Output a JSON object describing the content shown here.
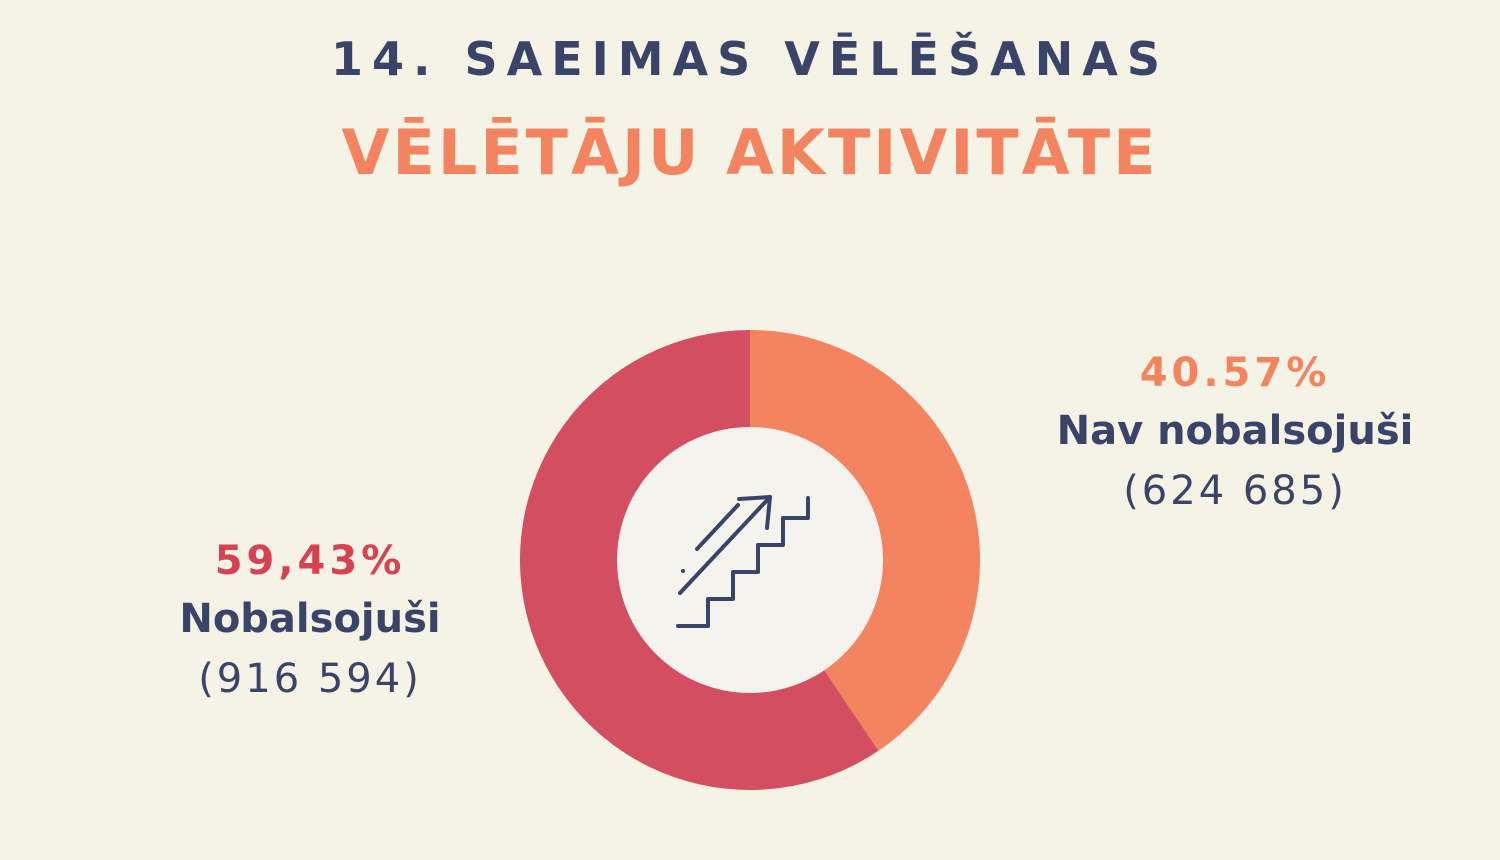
{
  "header": {
    "title": "14. SAEIMAS VĒLĒŠANAS",
    "subtitle": "VĒLĒTĀJU AKTIVITĀTE"
  },
  "chart_data": {
    "type": "pie",
    "variant": "donut",
    "categories": [
      "Nav nobalsojuši",
      "Nobalsojuši"
    ],
    "values": [
      40.57,
      59.43
    ],
    "percent_labels": [
      "40.57%",
      "59,43%"
    ],
    "counts": [
      624685,
      916594
    ],
    "count_labels": [
      "(624 685)",
      "(916 594)"
    ],
    "colors": [
      "#f4845f",
      "#d24e60"
    ],
    "label_colors": [
      "#f4845f",
      "#d8414f"
    ],
    "center_icon": "stairs-arrow-up-icon"
  },
  "colors": {
    "background": "#f5f3e6",
    "navy": "#3a4468",
    "orange": "#f4845f",
    "red": "#d24e60",
    "center_fill": "#f4f3ee"
  }
}
